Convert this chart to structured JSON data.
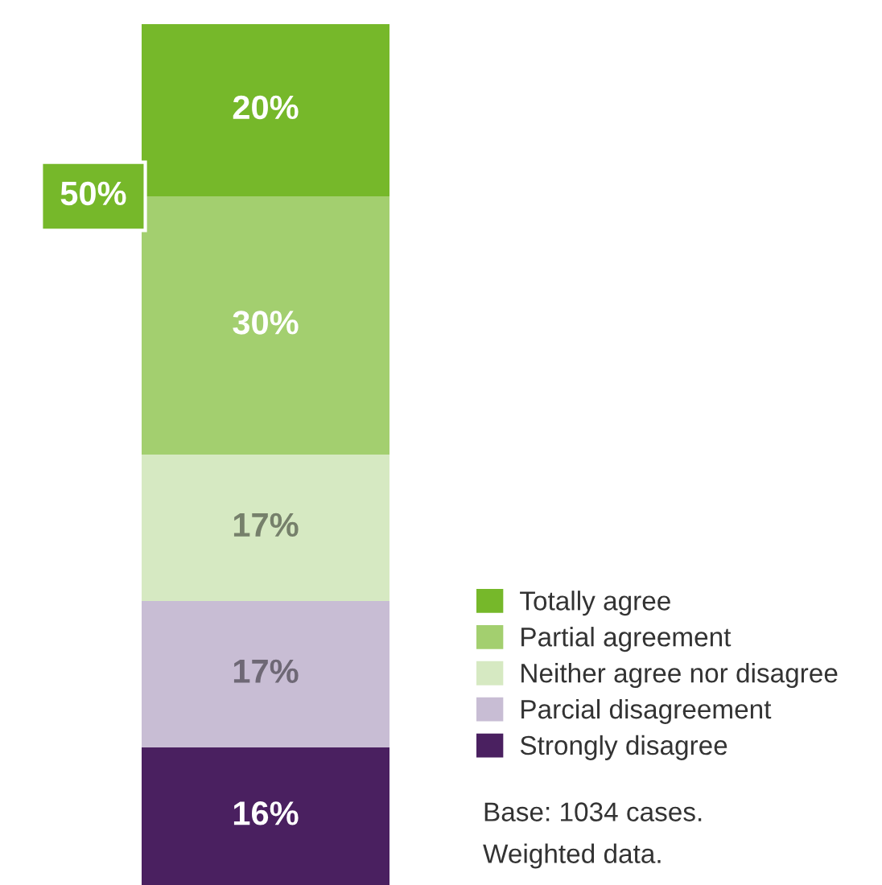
{
  "chart_data": {
    "type": "bar",
    "stacked": true,
    "categories": [
      null
    ],
    "series": [
      {
        "name": "Strongly disagree",
        "color": "#4a2060",
        "values": [
          16
        ],
        "value_labels": [
          "16%"
        ]
      },
      {
        "name": "Parcial disagreement",
        "color": "#c8bdd4",
        "values": [
          17
        ],
        "value_labels": [
          "17%"
        ]
      },
      {
        "name": "Neither agree nor disagree",
        "color": "#d6e9c2",
        "values": [
          17
        ],
        "value_labels": [
          "17%"
        ]
      },
      {
        "name": "Partial agreement",
        "color": "#a3cf6f",
        "values": [
          30
        ],
        "value_labels": [
          "30%"
        ]
      },
      {
        "name": "Totally agree",
        "color": "#76b82a",
        "values": [
          20
        ],
        "value_labels": [
          "20%"
        ]
      }
    ],
    "legend": "bottom right",
    "annotations": [
      "50%",
      "Base: 1034 cases.",
      "Weighted data."
    ]
  }
}
